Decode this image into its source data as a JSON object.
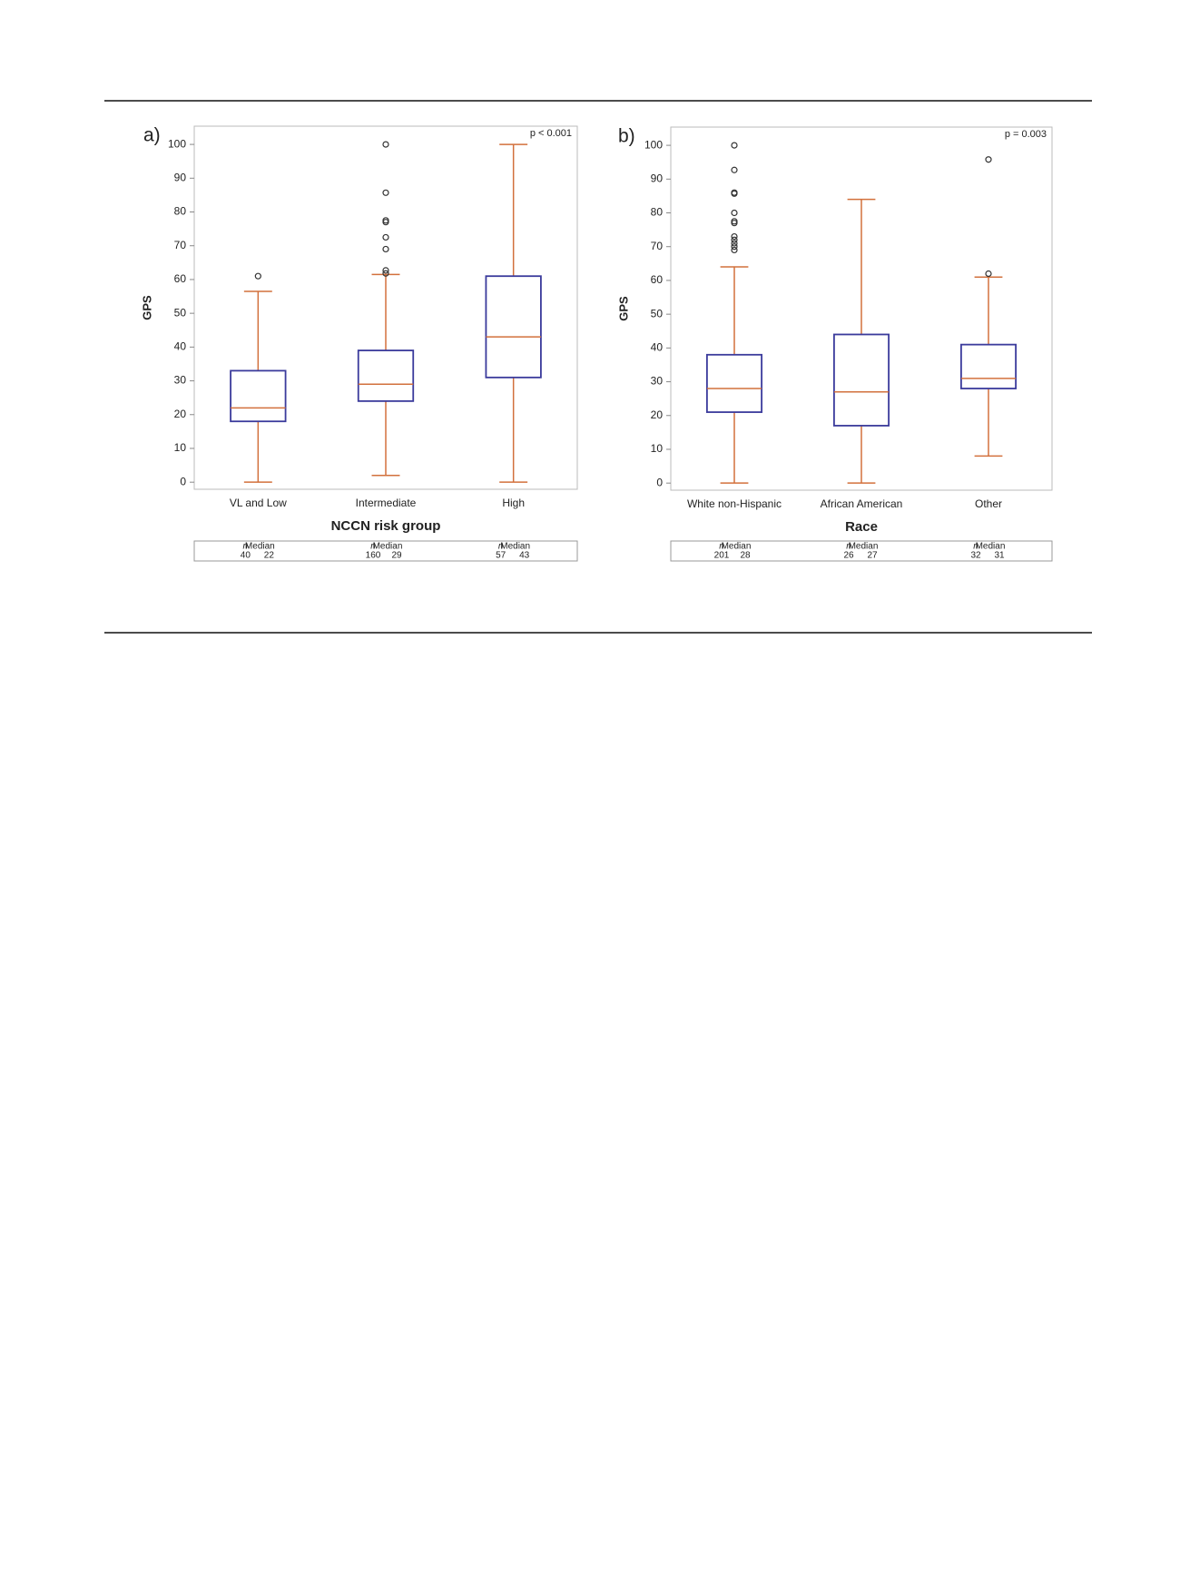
{
  "chart_data": [
    {
      "type": "box",
      "panel_label": "a)",
      "annotation": "p < 0.001",
      "ylabel": "GPS",
      "xlabel": "NCCN risk group",
      "categories": [
        "VL and Low",
        "Intermediate",
        "High"
      ],
      "box_color": "#3b3b9c",
      "whisker_color": "#d2703c",
      "outlier_color": "#333333",
      "ylim": [
        -2.1,
        105.4
      ],
      "yticks": [
        0,
        10,
        20,
        30,
        40,
        50,
        60,
        70,
        80,
        90,
        100
      ],
      "series": [
        {
          "low": 0,
          "q1": 18,
          "median": 22,
          "q3": 33,
          "high": 56.5,
          "outliers": [
            61
          ]
        },
        {
          "low": 2,
          "q1": 24,
          "median": 29,
          "q3": 39,
          "high": 61.5,
          "outliers": [
            61.8,
            62.7,
            69,
            72.5,
            77,
            77.5,
            85.7,
            100
          ]
        },
        {
          "low": 0,
          "q1": 31,
          "median": 43,
          "q3": 61,
          "high": 100,
          "outliers": []
        }
      ],
      "table": {
        "headers": [
          "n",
          "Median"
        ],
        "n": [
          40,
          160,
          57
        ]
      }
    },
    {
      "type": "box",
      "panel_label": "b)",
      "annotation": "p = 0.003",
      "ylabel": "GPS",
      "xlabel": "Race",
      "categories": [
        "White  non-Hispanic",
        "African American",
        "Other"
      ],
      "box_color": "#3b3b9c",
      "whisker_color": "#d2703c",
      "outlier_color": "#333333",
      "ylim": [
        -2.1,
        105.4
      ],
      "yticks": [
        0,
        10,
        20,
        30,
        40,
        50,
        60,
        70,
        80,
        90,
        100
      ],
      "series": [
        {
          "low": 0,
          "q1": 21,
          "median": 28,
          "q3": 38,
          "high": 64,
          "outliers": [
            69,
            70,
            71,
            72,
            73,
            77,
            77.5,
            80,
            85.7,
            86,
            92.7,
            100
          ]
        },
        {
          "low": 0,
          "q1": 17,
          "median": 27,
          "q3": 44,
          "high": 84,
          "outliers": []
        },
        {
          "low": 8,
          "q1": 28,
          "median": 31,
          "q3": 41,
          "high": 61,
          "outliers": [
            62,
            95.8
          ]
        }
      ],
      "table": {
        "headers": [
          "n",
          "Median"
        ],
        "n": [
          201,
          26,
          32
        ]
      }
    }
  ]
}
